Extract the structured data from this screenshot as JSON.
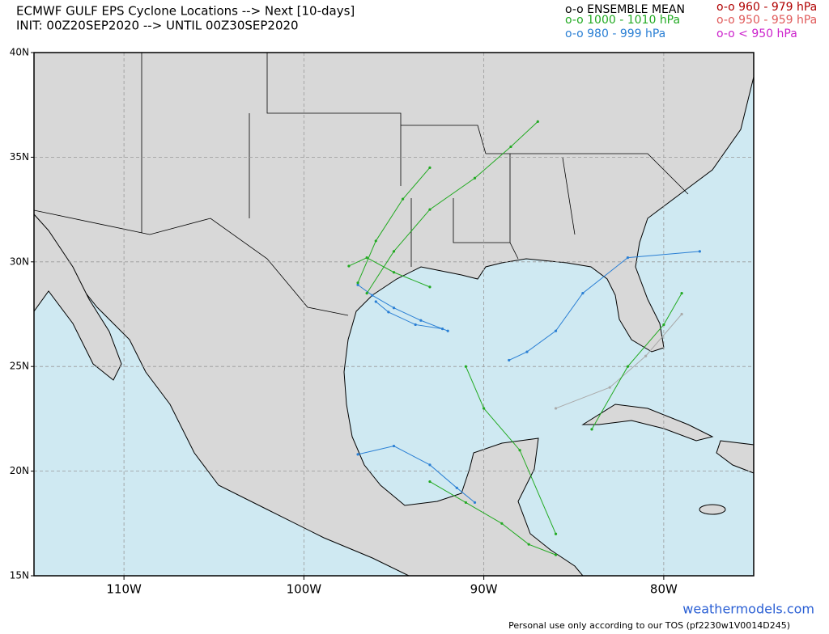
{
  "header": {
    "title": "ECMWF GULF EPS Cyclone Locations --> Next [10-days]",
    "subtitle": "INIT: 00Z20SEP2020 --> UNTIL 00Z30SEP2020"
  },
  "legend": [
    {
      "label": "o-o ENSEMBLE MEAN",
      "color": "#000000"
    },
    {
      "label": "o-o 1000 - 1010 hPa",
      "color": "#22aa22"
    },
    {
      "label": "o-o 980 - 999 hPa",
      "color": "#2a7fd4"
    },
    {
      "label": "o-o 960 - 979 hPa",
      "color": "#b00000"
    },
    {
      "label": "o-o 950 - 959 hPa",
      "color": "#e05a5a"
    },
    {
      "label": "o-o < 950 hPa",
      "color": "#cc22cc"
    }
  ],
  "map": {
    "xlim": [
      -115,
      -75
    ],
    "ylim": [
      15,
      40
    ],
    "xticks": [
      {
        "value": -110,
        "label": "110W"
      },
      {
        "value": -100,
        "label": "100W"
      },
      {
        "value": -90,
        "label": "90W"
      },
      {
        "value": -80,
        "label": "80W"
      }
    ],
    "yticks": [
      {
        "value": 15,
        "label": "15N"
      },
      {
        "value": 20,
        "label": "20N"
      },
      {
        "value": 25,
        "label": "25N"
      },
      {
        "value": 30,
        "label": "30N"
      },
      {
        "value": 35,
        "label": "35N"
      },
      {
        "value": 40,
        "label": "40N"
      }
    ],
    "grid": true,
    "tracks": [
      {
        "color": "#2a7fd4",
        "lon": [
          -92.0,
          -93.5,
          -95.0,
          -96.2,
          -97.0
        ],
        "lat": [
          26.7,
          27.2,
          27.8,
          28.4,
          28.9
        ]
      },
      {
        "color": "#2a7fd4",
        "lon": [
          -92.3,
          -93.8,
          -95.3,
          -96.0
        ],
        "lat": [
          26.8,
          27.0,
          27.6,
          28.1
        ]
      },
      {
        "color": "#22aa22",
        "lon": [
          -96.5,
          -95.0,
          -93.0,
          -90.5,
          -88.5,
          -87.0
        ],
        "lat": [
          28.5,
          30.5,
          32.5,
          34.0,
          35.5,
          36.7
        ]
      },
      {
        "color": "#22aa22",
        "lon": [
          -97.0,
          -96.0,
          -94.5,
          -93.0
        ],
        "lat": [
          29.0,
          31.0,
          33.0,
          34.5
        ]
      },
      {
        "color": "#22aa22",
        "lon": [
          -97.5,
          -96.5,
          -95.0,
          -93.0
        ],
        "lat": [
          29.8,
          30.2,
          29.5,
          28.8
        ]
      },
      {
        "color": "#2a7fd4",
        "lon": [
          -88.6,
          -87.6,
          -86.0,
          -84.5,
          -82.0,
          -78.0
        ],
        "lat": [
          25.3,
          25.7,
          26.7,
          28.5,
          30.2,
          30.5
        ]
      },
      {
        "color": "#2a7fd4",
        "lon": [
          -97.0,
          -95.0,
          -93.0,
          -91.5,
          -90.5
        ],
        "lat": [
          20.8,
          21.2,
          20.3,
          19.2,
          18.5
        ]
      },
      {
        "color": "#aaaaaa",
        "lon": [
          -86.0,
          -83.0,
          -81.0,
          -79.0
        ],
        "lat": [
          23.0,
          24.0,
          25.5,
          27.5
        ]
      },
      {
        "color": "#22aa22",
        "lon": [
          -86.0,
          -88.0,
          -90.0,
          -91.0
        ],
        "lat": [
          17.0,
          21.0,
          23.0,
          25.0
        ]
      },
      {
        "color": "#22aa22",
        "lon": [
          -84.0,
          -82.0,
          -80.0,
          -79.0
        ],
        "lat": [
          22.0,
          25.0,
          27.0,
          28.5
        ]
      },
      {
        "color": "#22aa22",
        "lon": [
          -93.0,
          -91.0,
          -89.0,
          -87.5,
          -86.0
        ],
        "lat": [
          19.5,
          18.5,
          17.5,
          16.5,
          16.0
        ]
      }
    ]
  },
  "footer": {
    "site": "weathermodels.com",
    "note": "Personal use only according to our TOS (pf2230w1V0014D245)"
  }
}
